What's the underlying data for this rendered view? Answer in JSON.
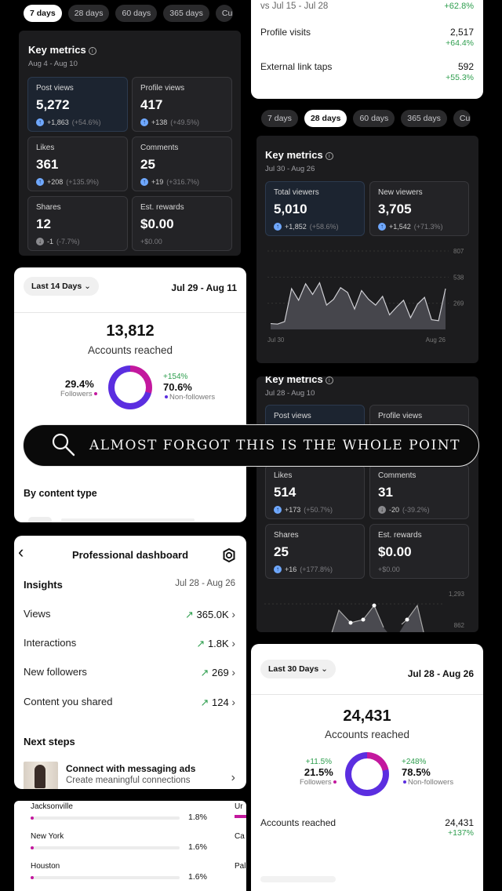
{
  "top_left": {
    "pills": [
      "7 days",
      "28 days",
      "60 days",
      "365 days",
      "Cu"
    ],
    "title": "Key metrics",
    "date": "Aug 4 - Aug 10",
    "cards": [
      {
        "label": "Post views",
        "value": "5,272",
        "delta": "+1,863",
        "pct": "(+54.6%)"
      },
      {
        "label": "Profile views",
        "value": "417",
        "delta": "+138",
        "pct": "(+49.5%)"
      },
      {
        "label": "Likes",
        "value": "361",
        "delta": "+208",
        "pct": "(+135.9%)"
      },
      {
        "label": "Comments",
        "value": "25",
        "delta": "+19",
        "pct": "(+316.7%)"
      },
      {
        "label": "Shares",
        "value": "12",
        "delta": "-1",
        "pct": "(-7.7%)"
      },
      {
        "label": "Est. rewards",
        "value": "$0.00",
        "delta": "+$0.00",
        "pct": ""
      }
    ]
  },
  "top_right": {
    "compare": "vs Jul 15 - Jul 28",
    "compare_delta": "+62.8%",
    "rows": [
      {
        "label": "Profile visits",
        "value": "2,517",
        "delta": "+64.4%"
      },
      {
        "label": "External link taps",
        "value": "592",
        "delta": "+55.3%"
      }
    ]
  },
  "mid_right": {
    "pills": [
      "7 days",
      "28 days",
      "60 days",
      "365 days",
      "Cu"
    ],
    "title": "Key metrics",
    "date": "Jul 30 - Aug 26",
    "cards": [
      {
        "label": "Total viewers",
        "value": "5,010",
        "delta": "+1,852",
        "pct": "(+58.6%)"
      },
      {
        "label": "New viewers",
        "value": "3,705",
        "delta": "+1,542",
        "pct": "(+71.3%)"
      }
    ],
    "chart_data": {
      "type": "area",
      "yticks": [
        "807",
        "538",
        "269"
      ],
      "xticks": [
        "Jul 30",
        "Aug 26"
      ],
      "values": [
        60,
        55,
        80,
        420,
        300,
        470,
        360,
        480,
        250,
        310,
        430,
        380,
        210,
        400,
        310,
        250,
        340,
        150,
        230,
        300,
        120,
        260,
        330,
        100,
        90,
        420
      ]
    }
  },
  "mid_right2": {
    "title": "Key metrics",
    "date": "Jul 28 - Aug 10",
    "cards": [
      {
        "label": "Post views",
        "value": "",
        "delta": "",
        "pct": ""
      },
      {
        "label": "Profile views",
        "value": "",
        "delta": "",
        "pct": ""
      },
      {
        "label": "Likes",
        "value": "514",
        "delta": "+173",
        "pct": "(+50.7%)"
      },
      {
        "label": "Comments",
        "value": "31",
        "delta": "-20",
        "pct": "(-39.2%)"
      },
      {
        "label": "Shares",
        "value": "25",
        "delta": "+16",
        "pct": "(+177.8%)"
      },
      {
        "label": "Est. rewards",
        "value": "$0.00",
        "delta": "+$0.00",
        "pct": ""
      }
    ],
    "yticks": [
      "1,293",
      "862"
    ]
  },
  "left_reach": {
    "dropdown": "Last 14 Days",
    "date": "Jul 29 - Aug 11",
    "big": "13,812",
    "big_label": "Accounts reached",
    "followers_pct": "29.4%",
    "followers_label": "Followers",
    "non_delta": "+154%",
    "non_pct": "70.6%",
    "non_label": "Non-followers",
    "section": "By content type"
  },
  "banner": {
    "text": "ALMOST FORGOT THIS IS THE WHOLE POINT"
  },
  "dashboard": {
    "title": "Professional dashboard",
    "insights": "Insights",
    "date": "Jul 28 - Aug 26",
    "rows": [
      {
        "label": "Views",
        "value": "365.0K"
      },
      {
        "label": "Interactions",
        "value": "1.8K"
      },
      {
        "label": "New followers",
        "value": "269"
      },
      {
        "label": "Content you shared",
        "value": "124"
      }
    ],
    "next": "Next steps",
    "cta_title": "Connect with messaging ads",
    "cta_sub": "Create meaningful connections"
  },
  "right_reach": {
    "dropdown": "Last 30 Days",
    "date": "Jul 28 - Aug 26",
    "big": "24,431",
    "big_label": "Accounts reached",
    "f_delta": "+11.5%",
    "f_pct": "21.5%",
    "f_label": "Followers",
    "n_delta": "+248%",
    "n_pct": "78.5%",
    "n_label": "Non-followers",
    "row_label": "Accounts reached",
    "row_value": "24,431",
    "row_delta": "+137%"
  },
  "cities": {
    "rows": [
      {
        "name": "Jacksonville",
        "pct": "1.8%"
      },
      {
        "name": "New York",
        "pct": "1.6%"
      },
      {
        "name": "Houston",
        "pct": "1.6%"
      }
    ],
    "right_initials": [
      "Ur",
      "Ca",
      "Pal"
    ]
  },
  "colors": {
    "accent_purple": "#c3189e",
    "ring_blue": "#5b2ee0",
    "green": "#2e9e4e"
  }
}
